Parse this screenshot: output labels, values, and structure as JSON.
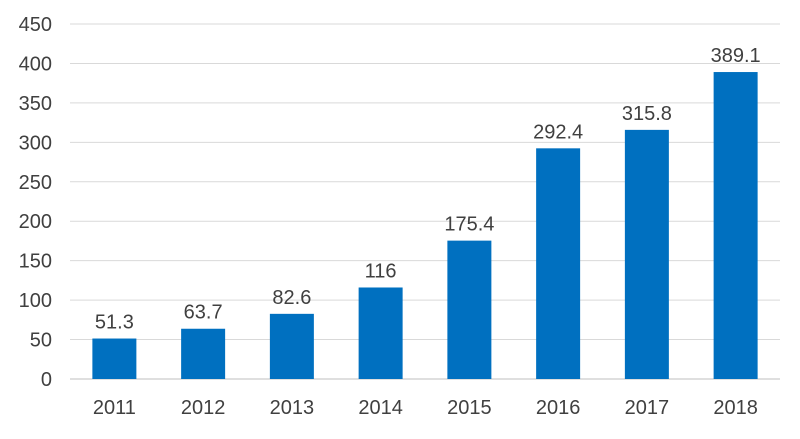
{
  "chart_data": {
    "type": "bar",
    "categories": [
      "2011",
      "2012",
      "2013",
      "2014",
      "2015",
      "2016",
      "2017",
      "2018"
    ],
    "values": [
      51.3,
      63.7,
      82.6,
      116,
      175.4,
      292.4,
      315.8,
      389.1
    ],
    "value_labels": [
      "51.3",
      "63.7",
      "82.6",
      "116",
      "175.4",
      "292.4",
      "315.8",
      "389.1"
    ],
    "title": "",
    "xlabel": "",
    "ylabel": "",
    "ylim": [
      0,
      450
    ],
    "yticks": [
      0,
      50,
      100,
      150,
      200,
      250,
      300,
      350,
      400,
      450
    ],
    "grid": true,
    "legend": "none",
    "bar_color": "#0070C0",
    "grid_color": "#D9D9D9",
    "text_color": "#404040"
  }
}
